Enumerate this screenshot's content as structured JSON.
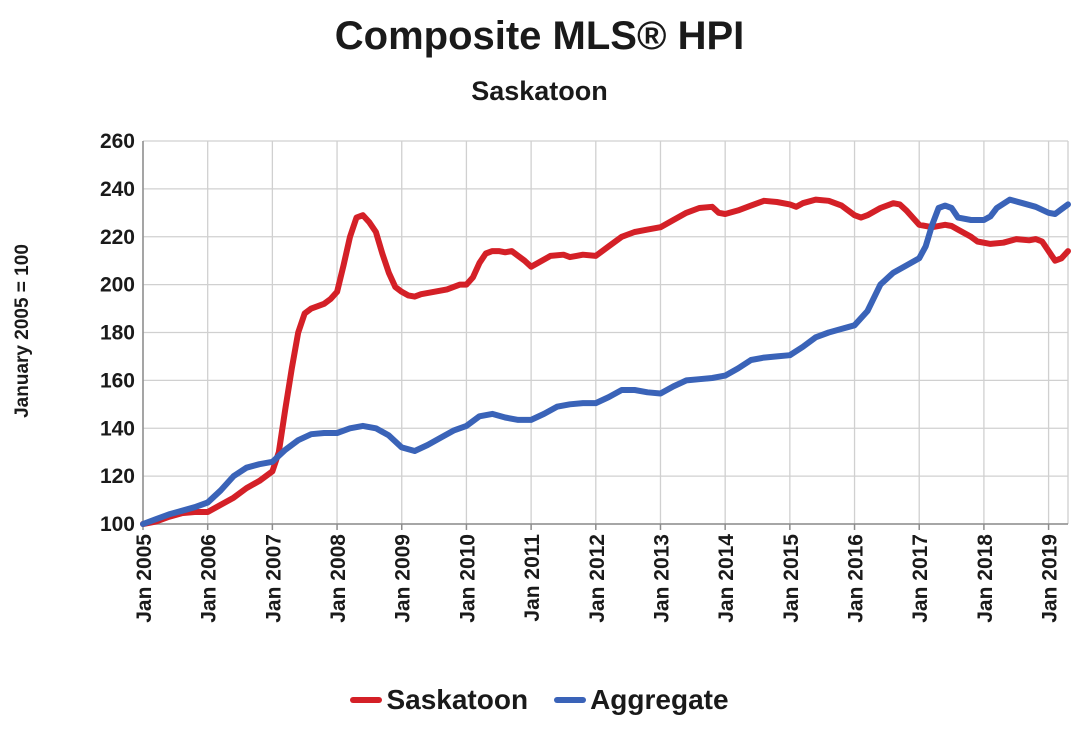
{
  "colors": {
    "saskatoon": "#d42027",
    "aggregate": "#3a63b8",
    "grid": "#d0d0d0"
  },
  "chart_data": {
    "type": "line",
    "title": "Composite MLS® HPI",
    "subtitle": "Saskatoon",
    "ylabel": "January 2005 = 100",
    "xlabel": "",
    "ylim": [
      100,
      260
    ],
    "yticks": [
      100,
      120,
      140,
      160,
      180,
      200,
      220,
      240,
      260
    ],
    "xlim": [
      2005.0,
      2019.3
    ],
    "xticks": [
      {
        "x": 2005,
        "label": "Jan 2005"
      },
      {
        "x": 2006,
        "label": "Jan 2006"
      },
      {
        "x": 2007,
        "label": "Jan 2007"
      },
      {
        "x": 2008,
        "label": "Jan 2008"
      },
      {
        "x": 2009,
        "label": "Jan 2009"
      },
      {
        "x": 2010,
        "label": "Jan 2010"
      },
      {
        "x": 2011,
        "label": "Jan 2011"
      },
      {
        "x": 2012,
        "label": "Jan 2012"
      },
      {
        "x": 2013,
        "label": "Jan 2013"
      },
      {
        "x": 2014,
        "label": "Jan 2014"
      },
      {
        "x": 2015,
        "label": "Jan 2015"
      },
      {
        "x": 2016,
        "label": "Jan 2016"
      },
      {
        "x": 2017,
        "label": "Jan 2017"
      },
      {
        "x": 2018,
        "label": "Jan 2018"
      },
      {
        "x": 2019,
        "label": "Jan 2019"
      }
    ],
    "grid": true,
    "legend": "bottom-center",
    "series": [
      {
        "name": "Saskatoon",
        "points": [
          [
            2005.0,
            100
          ],
          [
            2005.2,
            101
          ],
          [
            2005.4,
            103
          ],
          [
            2005.6,
            104.5
          ],
          [
            2005.8,
            105
          ],
          [
            2006.0,
            105
          ],
          [
            2006.2,
            108
          ],
          [
            2006.4,
            111
          ],
          [
            2006.6,
            115
          ],
          [
            2006.8,
            118
          ],
          [
            2007.0,
            122
          ],
          [
            2007.1,
            130
          ],
          [
            2007.2,
            148
          ],
          [
            2007.3,
            165
          ],
          [
            2007.4,
            180
          ],
          [
            2007.5,
            188
          ],
          [
            2007.6,
            190
          ],
          [
            2007.7,
            191
          ],
          [
            2007.8,
            192
          ],
          [
            2007.9,
            194
          ],
          [
            2008.0,
            197
          ],
          [
            2008.1,
            208
          ],
          [
            2008.2,
            220
          ],
          [
            2008.3,
            228
          ],
          [
            2008.4,
            229
          ],
          [
            2008.5,
            226
          ],
          [
            2008.6,
            222
          ],
          [
            2008.7,
            213
          ],
          [
            2008.8,
            205
          ],
          [
            2008.9,
            199
          ],
          [
            2009.0,
            197
          ],
          [
            2009.1,
            195.5
          ],
          [
            2009.2,
            195
          ],
          [
            2009.3,
            196
          ],
          [
            2009.5,
            197
          ],
          [
            2009.7,
            198
          ],
          [
            2009.9,
            200
          ],
          [
            2010.0,
            200
          ],
          [
            2010.1,
            203
          ],
          [
            2010.2,
            209
          ],
          [
            2010.3,
            213
          ],
          [
            2010.4,
            214
          ],
          [
            2010.5,
            214
          ],
          [
            2010.6,
            213.5
          ],
          [
            2010.7,
            214
          ],
          [
            2010.8,
            212
          ],
          [
            2010.9,
            210
          ],
          [
            2011.0,
            207.5
          ],
          [
            2011.1,
            209
          ],
          [
            2011.3,
            212
          ],
          [
            2011.5,
            212.5
          ],
          [
            2011.6,
            211.5
          ],
          [
            2011.7,
            212
          ],
          [
            2011.8,
            212.5
          ],
          [
            2012.0,
            212
          ],
          [
            2012.2,
            216
          ],
          [
            2012.4,
            220
          ],
          [
            2012.6,
            222
          ],
          [
            2012.8,
            223
          ],
          [
            2013.0,
            224
          ],
          [
            2013.2,
            227
          ],
          [
            2013.4,
            230
          ],
          [
            2013.6,
            232
          ],
          [
            2013.8,
            232.5
          ],
          [
            2013.9,
            230
          ],
          [
            2014.0,
            229.5
          ],
          [
            2014.2,
            231
          ],
          [
            2014.4,
            233
          ],
          [
            2014.6,
            235
          ],
          [
            2014.8,
            234.5
          ],
          [
            2015.0,
            233.5
          ],
          [
            2015.1,
            232.5
          ],
          [
            2015.2,
            234
          ],
          [
            2015.4,
            235.5
          ],
          [
            2015.6,
            235
          ],
          [
            2015.8,
            233
          ],
          [
            2016.0,
            229
          ],
          [
            2016.1,
            228
          ],
          [
            2016.2,
            229
          ],
          [
            2016.4,
            232
          ],
          [
            2016.6,
            234
          ],
          [
            2016.7,
            233.5
          ],
          [
            2016.8,
            231
          ],
          [
            2016.9,
            228
          ],
          [
            2017.0,
            225
          ],
          [
            2017.2,
            224
          ],
          [
            2017.4,
            225
          ],
          [
            2017.5,
            224.5
          ],
          [
            2017.6,
            223
          ],
          [
            2017.8,
            220
          ],
          [
            2017.9,
            218
          ],
          [
            2018.1,
            217
          ],
          [
            2018.3,
            217.5
          ],
          [
            2018.5,
            219
          ],
          [
            2018.7,
            218.5
          ],
          [
            2018.8,
            219
          ],
          [
            2018.9,
            218
          ],
          [
            2019.0,
            214
          ],
          [
            2019.1,
            210
          ],
          [
            2019.2,
            211
          ],
          [
            2019.3,
            214
          ]
        ]
      },
      {
        "name": "Aggregate",
        "points": [
          [
            2005.0,
            100
          ],
          [
            2005.2,
            102
          ],
          [
            2005.4,
            104
          ],
          [
            2005.6,
            105.5
          ],
          [
            2005.8,
            107
          ],
          [
            2006.0,
            109
          ],
          [
            2006.2,
            114
          ],
          [
            2006.4,
            120
          ],
          [
            2006.6,
            123.5
          ],
          [
            2006.8,
            125
          ],
          [
            2007.0,
            126
          ],
          [
            2007.2,
            131
          ],
          [
            2007.4,
            135
          ],
          [
            2007.6,
            137.5
          ],
          [
            2007.8,
            138
          ],
          [
            2008.0,
            138
          ],
          [
            2008.2,
            140
          ],
          [
            2008.4,
            141
          ],
          [
            2008.6,
            140
          ],
          [
            2008.8,
            137
          ],
          [
            2009.0,
            132
          ],
          [
            2009.2,
            130.5
          ],
          [
            2009.4,
            133
          ],
          [
            2009.6,
            136
          ],
          [
            2009.8,
            139
          ],
          [
            2010.0,
            141
          ],
          [
            2010.2,
            145
          ],
          [
            2010.4,
            146
          ],
          [
            2010.6,
            144.5
          ],
          [
            2010.8,
            143.5
          ],
          [
            2011.0,
            143.5
          ],
          [
            2011.2,
            146
          ],
          [
            2011.4,
            149
          ],
          [
            2011.6,
            150
          ],
          [
            2011.8,
            150.5
          ],
          [
            2012.0,
            150.5
          ],
          [
            2012.2,
            153
          ],
          [
            2012.4,
            156
          ],
          [
            2012.6,
            156
          ],
          [
            2012.8,
            155
          ],
          [
            2013.0,
            154.5
          ],
          [
            2013.2,
            157.5
          ],
          [
            2013.4,
            160
          ],
          [
            2013.6,
            160.5
          ],
          [
            2013.8,
            161
          ],
          [
            2014.0,
            162
          ],
          [
            2014.2,
            165
          ],
          [
            2014.4,
            168.5
          ],
          [
            2014.6,
            169.5
          ],
          [
            2014.8,
            170
          ],
          [
            2015.0,
            170.5
          ],
          [
            2015.2,
            174
          ],
          [
            2015.4,
            178
          ],
          [
            2015.6,
            180
          ],
          [
            2015.8,
            181.5
          ],
          [
            2016.0,
            183
          ],
          [
            2016.2,
            189
          ],
          [
            2016.4,
            200
          ],
          [
            2016.6,
            205
          ],
          [
            2016.8,
            208
          ],
          [
            2017.0,
            211
          ],
          [
            2017.1,
            216
          ],
          [
            2017.2,
            225
          ],
          [
            2017.3,
            232
          ],
          [
            2017.4,
            233
          ],
          [
            2017.5,
            232
          ],
          [
            2017.6,
            228
          ],
          [
            2017.8,
            227
          ],
          [
            2018.0,
            227
          ],
          [
            2018.1,
            228.5
          ],
          [
            2018.2,
            232
          ],
          [
            2018.4,
            235.5
          ],
          [
            2018.6,
            234
          ],
          [
            2018.8,
            232.5
          ],
          [
            2019.0,
            230
          ],
          [
            2019.1,
            229.5
          ],
          [
            2019.2,
            231.5
          ],
          [
            2019.3,
            233.5
          ]
        ]
      }
    ]
  }
}
